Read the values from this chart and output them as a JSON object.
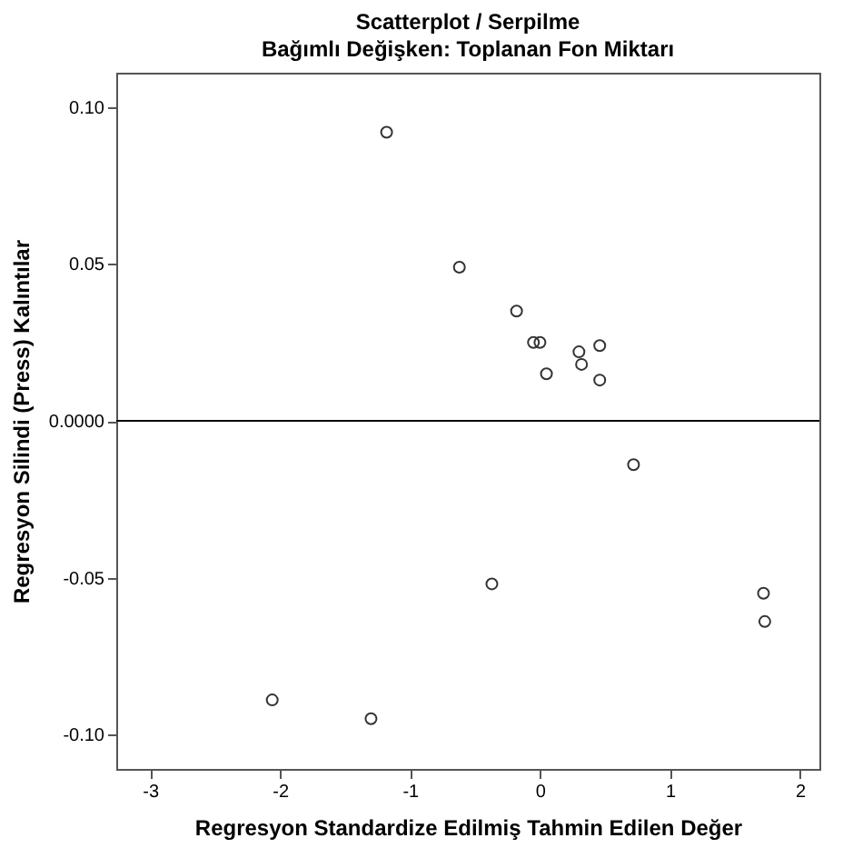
{
  "chart_data": {
    "type": "scatter",
    "title": "Scatterplot / Serpilme",
    "subtitle": "Bağımlı Değişken: Toplanan Fon Miktarı",
    "xlabel": "Regresyon Standardize Edilmiş Tahmin Edilen Değer",
    "ylabel": "Regresyon Silindi (Press) Kalıntılar",
    "x": [
      -1.18,
      -0.62,
      -0.18,
      -0.05,
      0.0,
      0.05,
      0.3,
      0.32,
      0.46,
      0.46,
      0.72,
      -0.37,
      1.72,
      1.73,
      -2.06,
      -1.3
    ],
    "series": [
      {
        "color": "#333333",
        "values": [
          0.092,
          0.049,
          0.035,
          0.025,
          0.025,
          0.015,
          0.022,
          0.018,
          0.024,
          0.013,
          -0.014,
          -0.052,
          -0.055,
          -0.064,
          -0.089,
          -0.095
        ]
      }
    ],
    "xlim": [
      -3.26,
      2.15
    ],
    "xticks": [
      -3,
      -2,
      -1,
      0,
      1,
      2
    ],
    "ylim": [
      -0.111,
      0.111
    ],
    "yticks": [
      {
        "value": -0.1,
        "label": "-0.10"
      },
      {
        "value": -0.05,
        "label": "-0.05"
      },
      {
        "value": 0,
        "label": "0.0000"
      },
      {
        "value": 0.05,
        "label": "0.05"
      },
      {
        "value": 0.1,
        "label": "0.10"
      }
    ],
    "ref_lines": [
      {
        "axis": "y",
        "value": 0
      }
    ],
    "marker": "circle",
    "grid": false
  }
}
